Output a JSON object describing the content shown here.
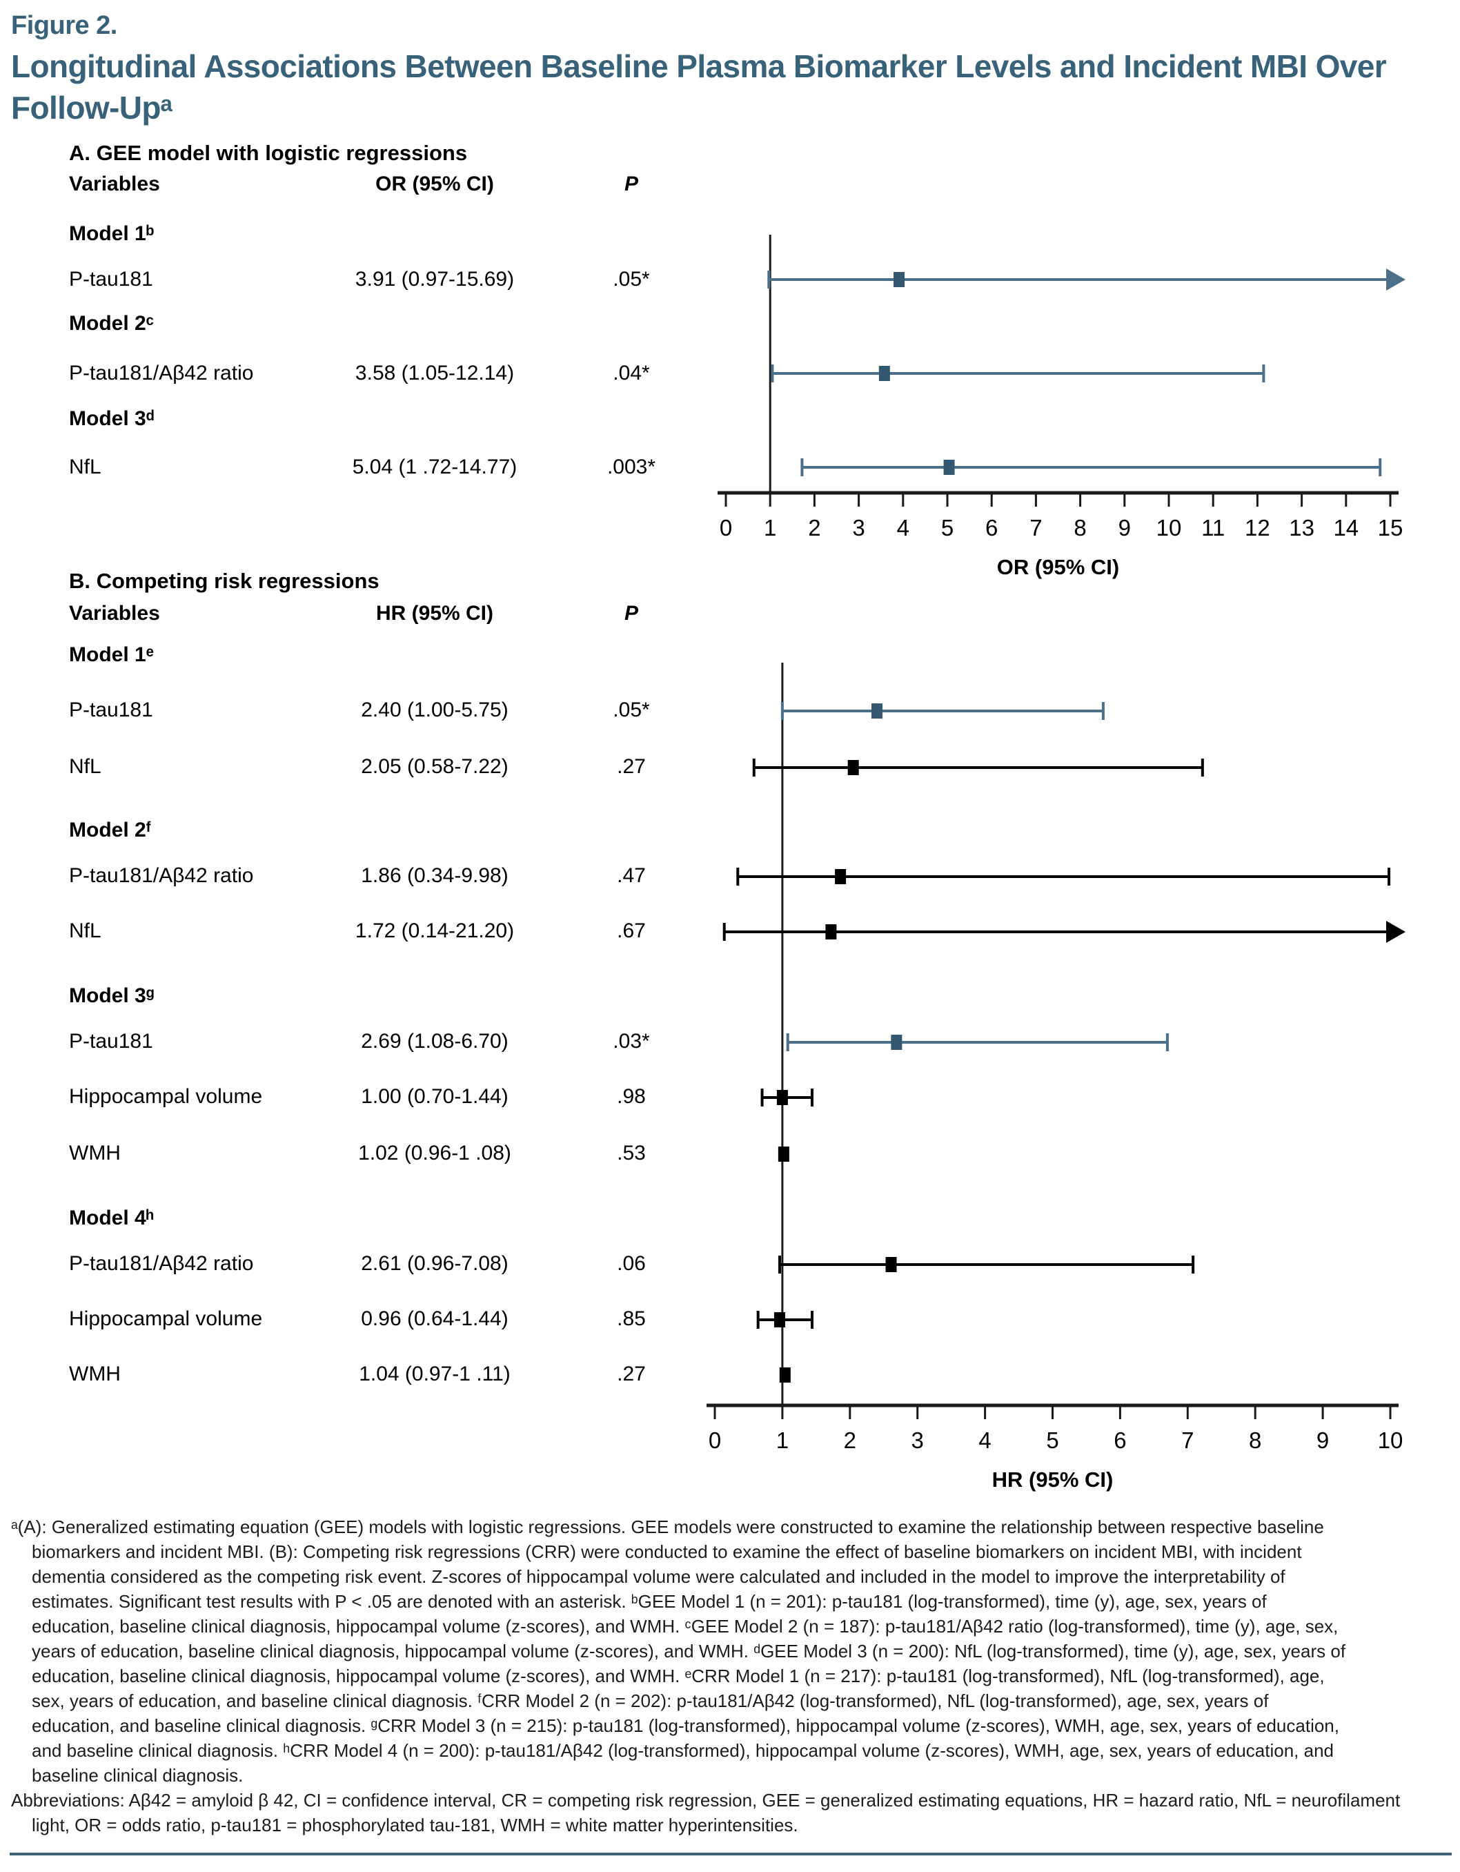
{
  "figure": {
    "label": "Figure 2.",
    "title": "Longitudinal Associations Between Baseline Plasma Biomarker Levels and Incident MBI Over Follow-Upᵃ"
  },
  "colors": {
    "heading_teal": "#38627A",
    "significant_line": "#4C7089",
    "significant_marker": "#33586F",
    "nonsignificant": "#000000",
    "axis": "#1a1a1a",
    "bottom_rule": "#3E6379"
  },
  "panelA": {
    "heading": "A. GEE model with logistic regressions",
    "columns": {
      "variables": "Variables",
      "estimate": "OR (95% CI)",
      "p": "P"
    },
    "rows": [
      {
        "kind": "model",
        "label": "Model 1ᵇ",
        "estimate": "",
        "p": ""
      },
      {
        "kind": "data",
        "label": "P-tau181",
        "estimate": "3.91 (0.97-15.69)",
        "p": ".05*"
      },
      {
        "kind": "model",
        "label": "Model 2ᶜ",
        "estimate": "",
        "p": ""
      },
      {
        "kind": "data",
        "label": "P-tau181/Aβ42 ratio",
        "estimate": "3.58 (1.05-12.14)",
        "p": ".04*"
      },
      {
        "kind": "model",
        "label": "Model 3ᵈ",
        "estimate": "",
        "p": ""
      },
      {
        "kind": "data",
        "label": "NfL",
        "estimate": "5.04 (1 .72-14.77)",
        "p": ".003*"
      }
    ]
  },
  "panelB": {
    "heading": "B. Competing risk regressions",
    "columns": {
      "variables": "Variables",
      "estimate": "HR (95% CI)",
      "p": "P"
    },
    "rows": [
      {
        "kind": "model",
        "label": "Model 1ᵉ",
        "estimate": "",
        "p": ""
      },
      {
        "kind": "data",
        "label": "P-tau181",
        "estimate": "2.40 (1.00-5.75)",
        "p": ".05*"
      },
      {
        "kind": "data",
        "label": "NfL",
        "estimate": "2.05 (0.58-7.22)",
        "p": ".27"
      },
      {
        "kind": "model",
        "label": "Model 2ᶠ",
        "estimate": "",
        "p": ""
      },
      {
        "kind": "data",
        "label": "P-tau181/Aβ42 ratio",
        "estimate": "1.86 (0.34-9.98)",
        "p": ".47"
      },
      {
        "kind": "data",
        "label": "NfL",
        "estimate": "1.72 (0.14-21.20)",
        "p": ".67"
      },
      {
        "kind": "model",
        "label": "Model 3ᵍ",
        "estimate": "",
        "p": ""
      },
      {
        "kind": "data",
        "label": "P-tau181",
        "estimate": "2.69 (1.08-6.70)",
        "p": ".03*"
      },
      {
        "kind": "data",
        "label": "Hippocampal volume",
        "estimate": "1.00 (0.70-1.44)",
        "p": ".98"
      },
      {
        "kind": "data",
        "label": "WMH",
        "estimate": "1.02 (0.96-1 .08)",
        "p": ".53"
      },
      {
        "kind": "model",
        "label": "Model 4ʰ",
        "estimate": "",
        "p": ""
      },
      {
        "kind": "data",
        "label": "P-tau181/Aβ42 ratio",
        "estimate": "2.61 (0.96-7.08)",
        "p": ".06"
      },
      {
        "kind": "data",
        "label": "Hippocampal volume",
        "estimate": "0.96 (0.64-1.44)",
        "p": ".85"
      },
      {
        "kind": "data",
        "label": "WMH",
        "estimate": "1.04 (0.97-1 .11)",
        "p": ".27"
      }
    ]
  },
  "chart_data": [
    {
      "type": "forest",
      "panel": "A",
      "title": "A. GEE model with logistic regressions",
      "xlabel": "OR (95% CI)",
      "xlim": [
        0,
        15
      ],
      "xticks": [
        0,
        1,
        2,
        3,
        4,
        5,
        6,
        7,
        8,
        9,
        10,
        11,
        12,
        13,
        14,
        15
      ],
      "refline_x": 1,
      "grid": false,
      "points": [
        {
          "label": "P-tau181",
          "model": "Model 1",
          "est": 3.91,
          "ci_low": 0.97,
          "ci_high": 15.69,
          "p": ".05*",
          "significant": true,
          "arrow_high": true
        },
        {
          "label": "P-tau181/Aβ42 ratio",
          "model": "Model 2",
          "est": 3.58,
          "ci_low": 1.05,
          "ci_high": 12.14,
          "p": ".04*",
          "significant": true,
          "arrow_high": false
        },
        {
          "label": "NfL",
          "model": "Model 3",
          "est": 5.04,
          "ci_low": 1.72,
          "ci_high": 14.77,
          "p": ".003*",
          "significant": true,
          "arrow_high": false
        }
      ]
    },
    {
      "type": "forest",
      "panel": "B",
      "title": "B. Competing risk regressions",
      "xlabel": "HR (95% CI)",
      "xlim": [
        0,
        10
      ],
      "xticks": [
        0,
        1,
        2,
        3,
        4,
        5,
        6,
        7,
        8,
        9,
        10
      ],
      "refline_x": 1,
      "grid": false,
      "points": [
        {
          "label": "P-tau181",
          "model": "Model 1",
          "est": 2.4,
          "ci_low": 1.0,
          "ci_high": 5.75,
          "p": ".05*",
          "significant": true,
          "arrow_high": false
        },
        {
          "label": "NfL",
          "model": "Model 1",
          "est": 2.05,
          "ci_low": 0.58,
          "ci_high": 7.22,
          "p": ".27",
          "significant": false,
          "arrow_high": false
        },
        {
          "label": "P-tau181/Aβ42 ratio",
          "model": "Model 2",
          "est": 1.86,
          "ci_low": 0.34,
          "ci_high": 9.98,
          "p": ".47",
          "significant": false,
          "arrow_high": false
        },
        {
          "label": "NfL",
          "model": "Model 2",
          "est": 1.72,
          "ci_low": 0.14,
          "ci_high": 21.2,
          "p": ".67",
          "significant": false,
          "arrow_high": true
        },
        {
          "label": "P-tau181",
          "model": "Model 3",
          "est": 2.69,
          "ci_low": 1.08,
          "ci_high": 6.7,
          "p": ".03*",
          "significant": true,
          "arrow_high": false
        },
        {
          "label": "Hippocampal volume",
          "model": "Model 3",
          "est": 1.0,
          "ci_low": 0.7,
          "ci_high": 1.44,
          "p": ".98",
          "significant": false,
          "arrow_high": false
        },
        {
          "label": "WMH",
          "model": "Model 3",
          "est": 1.02,
          "ci_low": 0.96,
          "ci_high": 1.08,
          "p": ".53",
          "significant": false,
          "arrow_high": false
        },
        {
          "label": "P-tau181/Aβ42 ratio",
          "model": "Model 4",
          "est": 2.61,
          "ci_low": 0.96,
          "ci_high": 7.08,
          "p": ".06",
          "significant": false,
          "arrow_high": false
        },
        {
          "label": "Hippocampal volume",
          "model": "Model 4",
          "est": 0.96,
          "ci_low": 0.64,
          "ci_high": 1.44,
          "p": ".85",
          "significant": false,
          "arrow_high": false
        },
        {
          "label": "WMH",
          "model": "Model 4",
          "est": 1.04,
          "ci_low": 0.97,
          "ci_high": 1.11,
          "p": ".27",
          "significant": false,
          "arrow_high": false
        }
      ]
    }
  ],
  "footnote": {
    "lines": [
      "ᵃ(A): Generalized estimating equation (GEE) models with logistic regressions. GEE models were constructed to examine the relationship between respective baseline",
      "biomarkers and incident MBI. (B): Competing risk regressions (CRR) were conducted to examine the effect of baseline biomarkers on incident MBI, with incident",
      "dementia considered as the competing risk event. Z-scores of hippocampal volume were calculated and included in the model to improve the interpretability of",
      "estimates. Significant test results with P < .05 are denoted with an asterisk. ᵇGEE Model 1 (n = 201): p-tau181 (log-transformed), time (y), age, sex, years of",
      "education, baseline clinical diagnosis, hippocampal volume (z-scores), and WMH. ᶜGEE Model 2 (n = 187): p-tau181/Aβ42 ratio (log-transformed), time (y), age, sex,",
      "years of education, baseline clinical diagnosis, hippocampal volume (z-scores), and WMH. ᵈGEE Model 3 (n = 200): NfL (log-transformed), time (y), age, sex, years of",
      "education, baseline clinical diagnosis, hippocampal volume (z-scores), and WMH. ᵉCRR Model 1 (n = 217): p-tau181 (log-transformed), NfL (log-transformed), age,",
      "sex, years of education, and baseline clinical diagnosis. ᶠCRR Model 2 (n = 202): p-tau181/Aβ42 (log-transformed), NfL (log-transformed), age, sex, years of",
      "education, and baseline clinical diagnosis. ᵍCRR Model 3 (n = 215): p-tau181 (log-transformed), hippocampal volume (z-scores), WMH, age, sex, years of education,",
      "and baseline clinical diagnosis. ʰCRR Model 4 (n = 200): p-tau181/Aβ42 (log-transformed), hippocampal volume (z-scores), WMH, age, sex, years of education, and",
      "baseline clinical diagnosis."
    ],
    "abbreviation_lines": [
      "Abbreviations: Aβ42 = amyloid β 42, CI = confidence interval, CR = competing risk regression, GEE = generalized estimating equations, HR = hazard ratio, NfL = neurofilament",
      "light, OR = odds ratio, p-tau181 = phosphorylated tau-181, WMH = white matter hyperintensities."
    ]
  }
}
